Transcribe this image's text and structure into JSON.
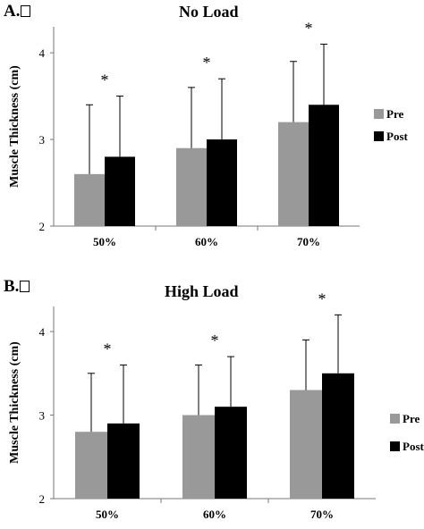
{
  "chart_data": [
    {
      "type": "bar",
      "panel_label": "A.",
      "title": "No Load",
      "ylabel": "Muscle Thickness (cm)",
      "xlabel": "",
      "ylim": [
        2,
        4.3
      ],
      "yticks": [
        "2",
        "3",
        "4"
      ],
      "categories": [
        "50%",
        "60%",
        "70%"
      ],
      "series": [
        {
          "name": "Pre",
          "color": "#999999",
          "values": [
            2.6,
            2.9,
            3.2
          ],
          "error": [
            0.8,
            0.7,
            0.7
          ]
        },
        {
          "name": "Post",
          "color": "#000000",
          "values": [
            2.8,
            3.0,
            3.4
          ],
          "error": [
            0.7,
            0.7,
            0.7
          ]
        }
      ],
      "annotations": [
        "*",
        "*",
        "*"
      ],
      "legend_position": "right",
      "grid": false
    },
    {
      "type": "bar",
      "panel_label": "B.",
      "title": "High Load",
      "ylabel": "Muscle Thickness (cm)",
      "xlabel": "",
      "ylim": [
        2,
        4.3
      ],
      "yticks": [
        "2",
        "3",
        "4"
      ],
      "categories": [
        "50%",
        "60%",
        "70%"
      ],
      "series": [
        {
          "name": "Pre",
          "color": "#999999",
          "values": [
            2.8,
            3.0,
            3.3
          ],
          "error": [
            0.7,
            0.6,
            0.6
          ]
        },
        {
          "name": "Post",
          "color": "#000000",
          "values": [
            2.9,
            3.1,
            3.5
          ],
          "error": [
            0.7,
            0.6,
            0.7
          ]
        }
      ],
      "annotations": [
        "*",
        "*",
        "*"
      ],
      "legend_position": "right",
      "grid": false
    }
  ]
}
